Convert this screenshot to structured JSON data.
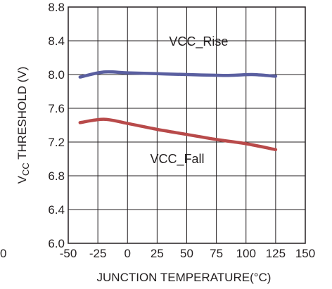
{
  "chart_data": {
    "type": "line",
    "xlabel": "JUNCTION TEMPERATURE(°C)",
    "ylabel_main": "V",
    "ylabel_sub": "CC",
    "ylabel_rest": " THRESHOLD (V)",
    "xlim": [
      -50,
      150
    ],
    "ylim": [
      6.0,
      8.8
    ],
    "x_ticks": [
      -50,
      -25,
      0,
      25,
      50,
      75,
      100,
      125,
      150
    ],
    "x_tick_labels": [
      "-50",
      "-25",
      "0",
      "25",
      "50",
      "75",
      "100",
      "125",
      "150"
    ],
    "y_ticks": [
      6.0,
      6.4,
      6.8,
      7.2,
      7.6,
      8.0,
      8.4,
      8.8
    ],
    "y_tick_labels": [
      "6.0",
      "6.4",
      "6.8",
      "7.2",
      "7.6",
      "8.0",
      "8.4",
      "8.8"
    ],
    "stray_tick_label": "0",
    "grid": true,
    "series": [
      {
        "name": "VCC_Rise",
        "color": "#5a5fa0",
        "x": [
          -40,
          -20,
          0,
          25,
          50,
          85,
          105,
          125
        ],
        "y": [
          7.97,
          8.03,
          8.02,
          8.01,
          8.0,
          7.99,
          8.0,
          7.98
        ]
      },
      {
        "name": "VCC_Fall",
        "color": "#b84a4a",
        "x": [
          -40,
          -20,
          0,
          25,
          50,
          75,
          100,
          125
        ],
        "y": [
          7.43,
          7.47,
          7.42,
          7.35,
          7.29,
          7.23,
          7.18,
          7.11
        ]
      }
    ],
    "series_labels": [
      {
        "text": "VCC_Rise",
        "x": 60,
        "y": 8.34
      },
      {
        "text": "VCC_Fall",
        "x": 42,
        "y": 6.95
      }
    ]
  }
}
